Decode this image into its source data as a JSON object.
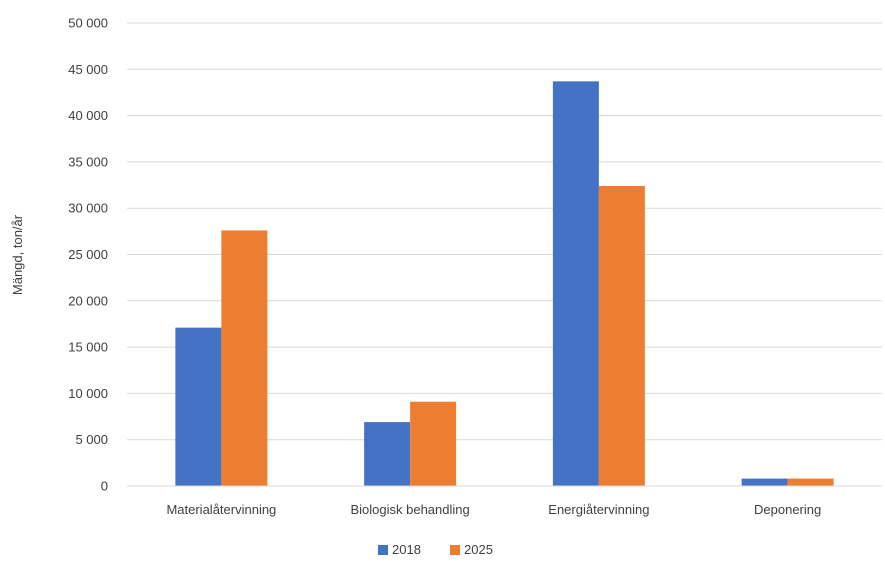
{
  "chart_data": {
    "type": "bar",
    "title": "",
    "xlabel": "",
    "ylabel": "Mängd, ton/år",
    "ylim": [
      0,
      50000
    ],
    "ytick_step": 5000,
    "ytick_labels": [
      "0",
      "5 000",
      "10 000",
      "15 000",
      "20 000",
      "25 000",
      "30 000",
      "35 000",
      "40 000",
      "45 000",
      "50 000"
    ],
    "categories": [
      "Materialåtervinning",
      "Biologisk behandling",
      "Energiåtervinning",
      "Deponering"
    ],
    "series": [
      {
        "name": "2018",
        "color": "#4472C4",
        "values": [
          17100,
          6900,
          43700,
          800
        ]
      },
      {
        "name": "2025",
        "color": "#ED7D31",
        "values": [
          27600,
          9100,
          32400,
          800
        ]
      }
    ],
    "grid": true,
    "legend_position": "bottom"
  }
}
